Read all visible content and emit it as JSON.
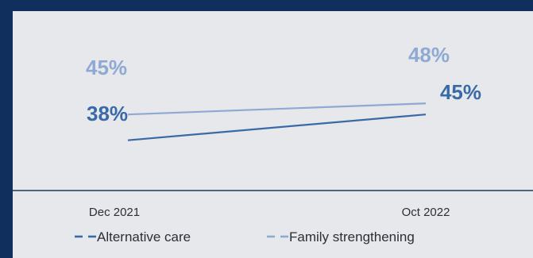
{
  "chart_data": {
    "type": "line",
    "categories": [
      "Dec 2021",
      "Oct 2022"
    ],
    "series": [
      {
        "name": "Alternative care",
        "values": [
          38,
          45
        ],
        "labels": [
          "38%",
          "45%"
        ],
        "color": "#3a6aa6",
        "legend_label": "Alternative care"
      },
      {
        "name": "Family strengthening",
        "values": [
          45,
          48
        ],
        "labels": [
          "45%",
          "48%"
        ],
        "color": "#8ea9d2",
        "legend_label": "Family strengthening"
      }
    ],
    "ylim": [
      0,
      60
    ],
    "grid": false,
    "legend_position": "bottom",
    "title": "",
    "xlabel": "",
    "ylabel": ""
  },
  "colors": {
    "frame": "#112f5c",
    "panel": "#e7e8ec",
    "axis": "#1d355f",
    "text": "#2b2f36"
  }
}
